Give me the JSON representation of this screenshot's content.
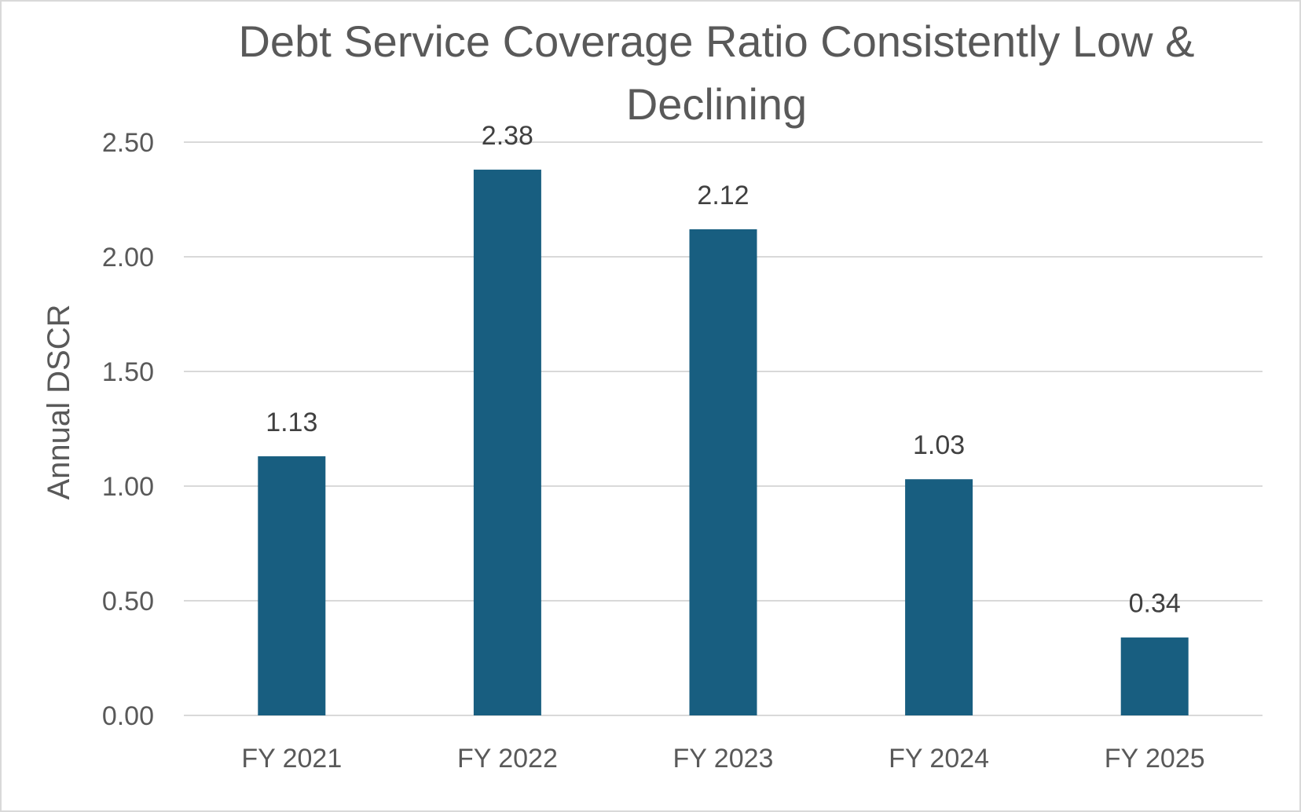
{
  "chart_data": {
    "type": "bar",
    "title_lines": [
      "Debt Service Coverage Ratio Consistently Low &",
      "Declining"
    ],
    "title": "Debt Service Coverage Ratio Consistently Low & Declining",
    "categories": [
      "FY 2021",
      "FY 2022",
      "FY 2023",
      "FY 2024",
      "FY 2025"
    ],
    "values": [
      1.13,
      2.38,
      2.12,
      1.03,
      0.34
    ],
    "data_labels": [
      "1.13",
      "2.38",
      "2.12",
      "1.03",
      "0.34"
    ],
    "xlabel": "",
    "ylabel": "Annual DSCR",
    "ylim": [
      0,
      2.5
    ],
    "yticks": [
      0,
      0.5,
      1.0,
      1.5,
      2.0,
      2.5
    ],
    "ytick_labels": [
      "0.00",
      "0.50",
      "1.00",
      "1.50",
      "2.00",
      "2.50"
    ],
    "grid": true,
    "legend": "none",
    "bar_color": "#185E80"
  }
}
